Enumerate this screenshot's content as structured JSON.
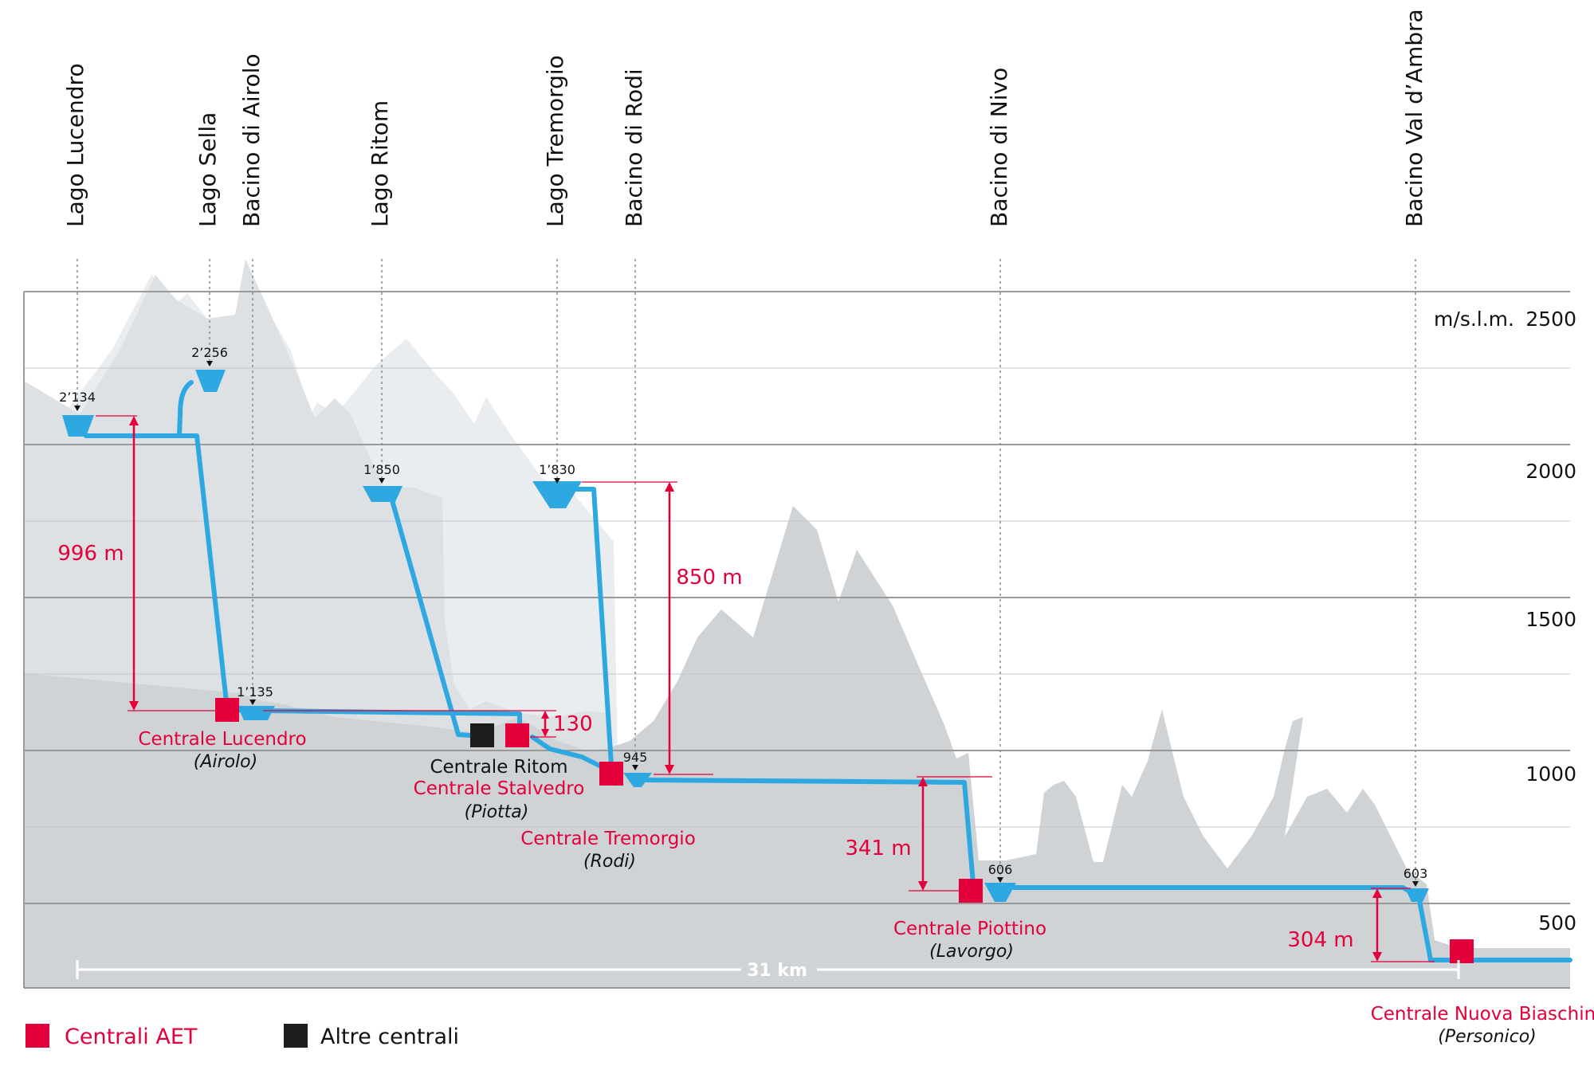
{
  "axis": {
    "unit": "m/s.l.m.",
    "ticks": [
      "2500",
      "2000",
      "1500",
      "1000",
      "500"
    ]
  },
  "lakes": [
    {
      "name": "Lago Lucendro"
    },
    {
      "name": "Lago Sella"
    },
    {
      "name": "Bacino di Airolo"
    },
    {
      "name": "Lago Ritom"
    },
    {
      "name": "Lago Tremorgio"
    },
    {
      "name": "Bacino di Rodi"
    },
    {
      "name": "Bacino di Nivo"
    },
    {
      "name": "Bacino Val d’Ambra"
    }
  ],
  "elevations": [
    "2’134",
    "2’256",
    "1’135",
    "1’850",
    "1’830",
    "945",
    "606",
    "603"
  ],
  "drops": [
    "996 m",
    "130",
    "850 m",
    "341 m",
    "304 m"
  ],
  "plants": [
    {
      "name": "Centrale Lucendro",
      "location": "(Airolo)"
    },
    {
      "name": "Centrale Ritom"
    },
    {
      "name": "Centrale Stalvedro",
      "location": "(Piotta)"
    },
    {
      "name": "Centrale Tremorgio",
      "location": "(Rodi)"
    },
    {
      "name": "Centrale Piottino",
      "location": "(Lavorgo)"
    },
    {
      "name": "Centrale Nuova Biaschina",
      "location": "(Personico)"
    }
  ],
  "distance": "31 km",
  "legend": {
    "aet": "Centrali AET",
    "other": "Altre centrali"
  },
  "colors": {
    "aet": "#e4003a",
    "other": "#1d1d1b",
    "water": "#2ea8e1",
    "mountain_light": "#e8ecef",
    "mountain_mid": "#dde1e4",
    "mountain_dark": "#cfd3d6",
    "grid": "#9a9a9a"
  }
}
